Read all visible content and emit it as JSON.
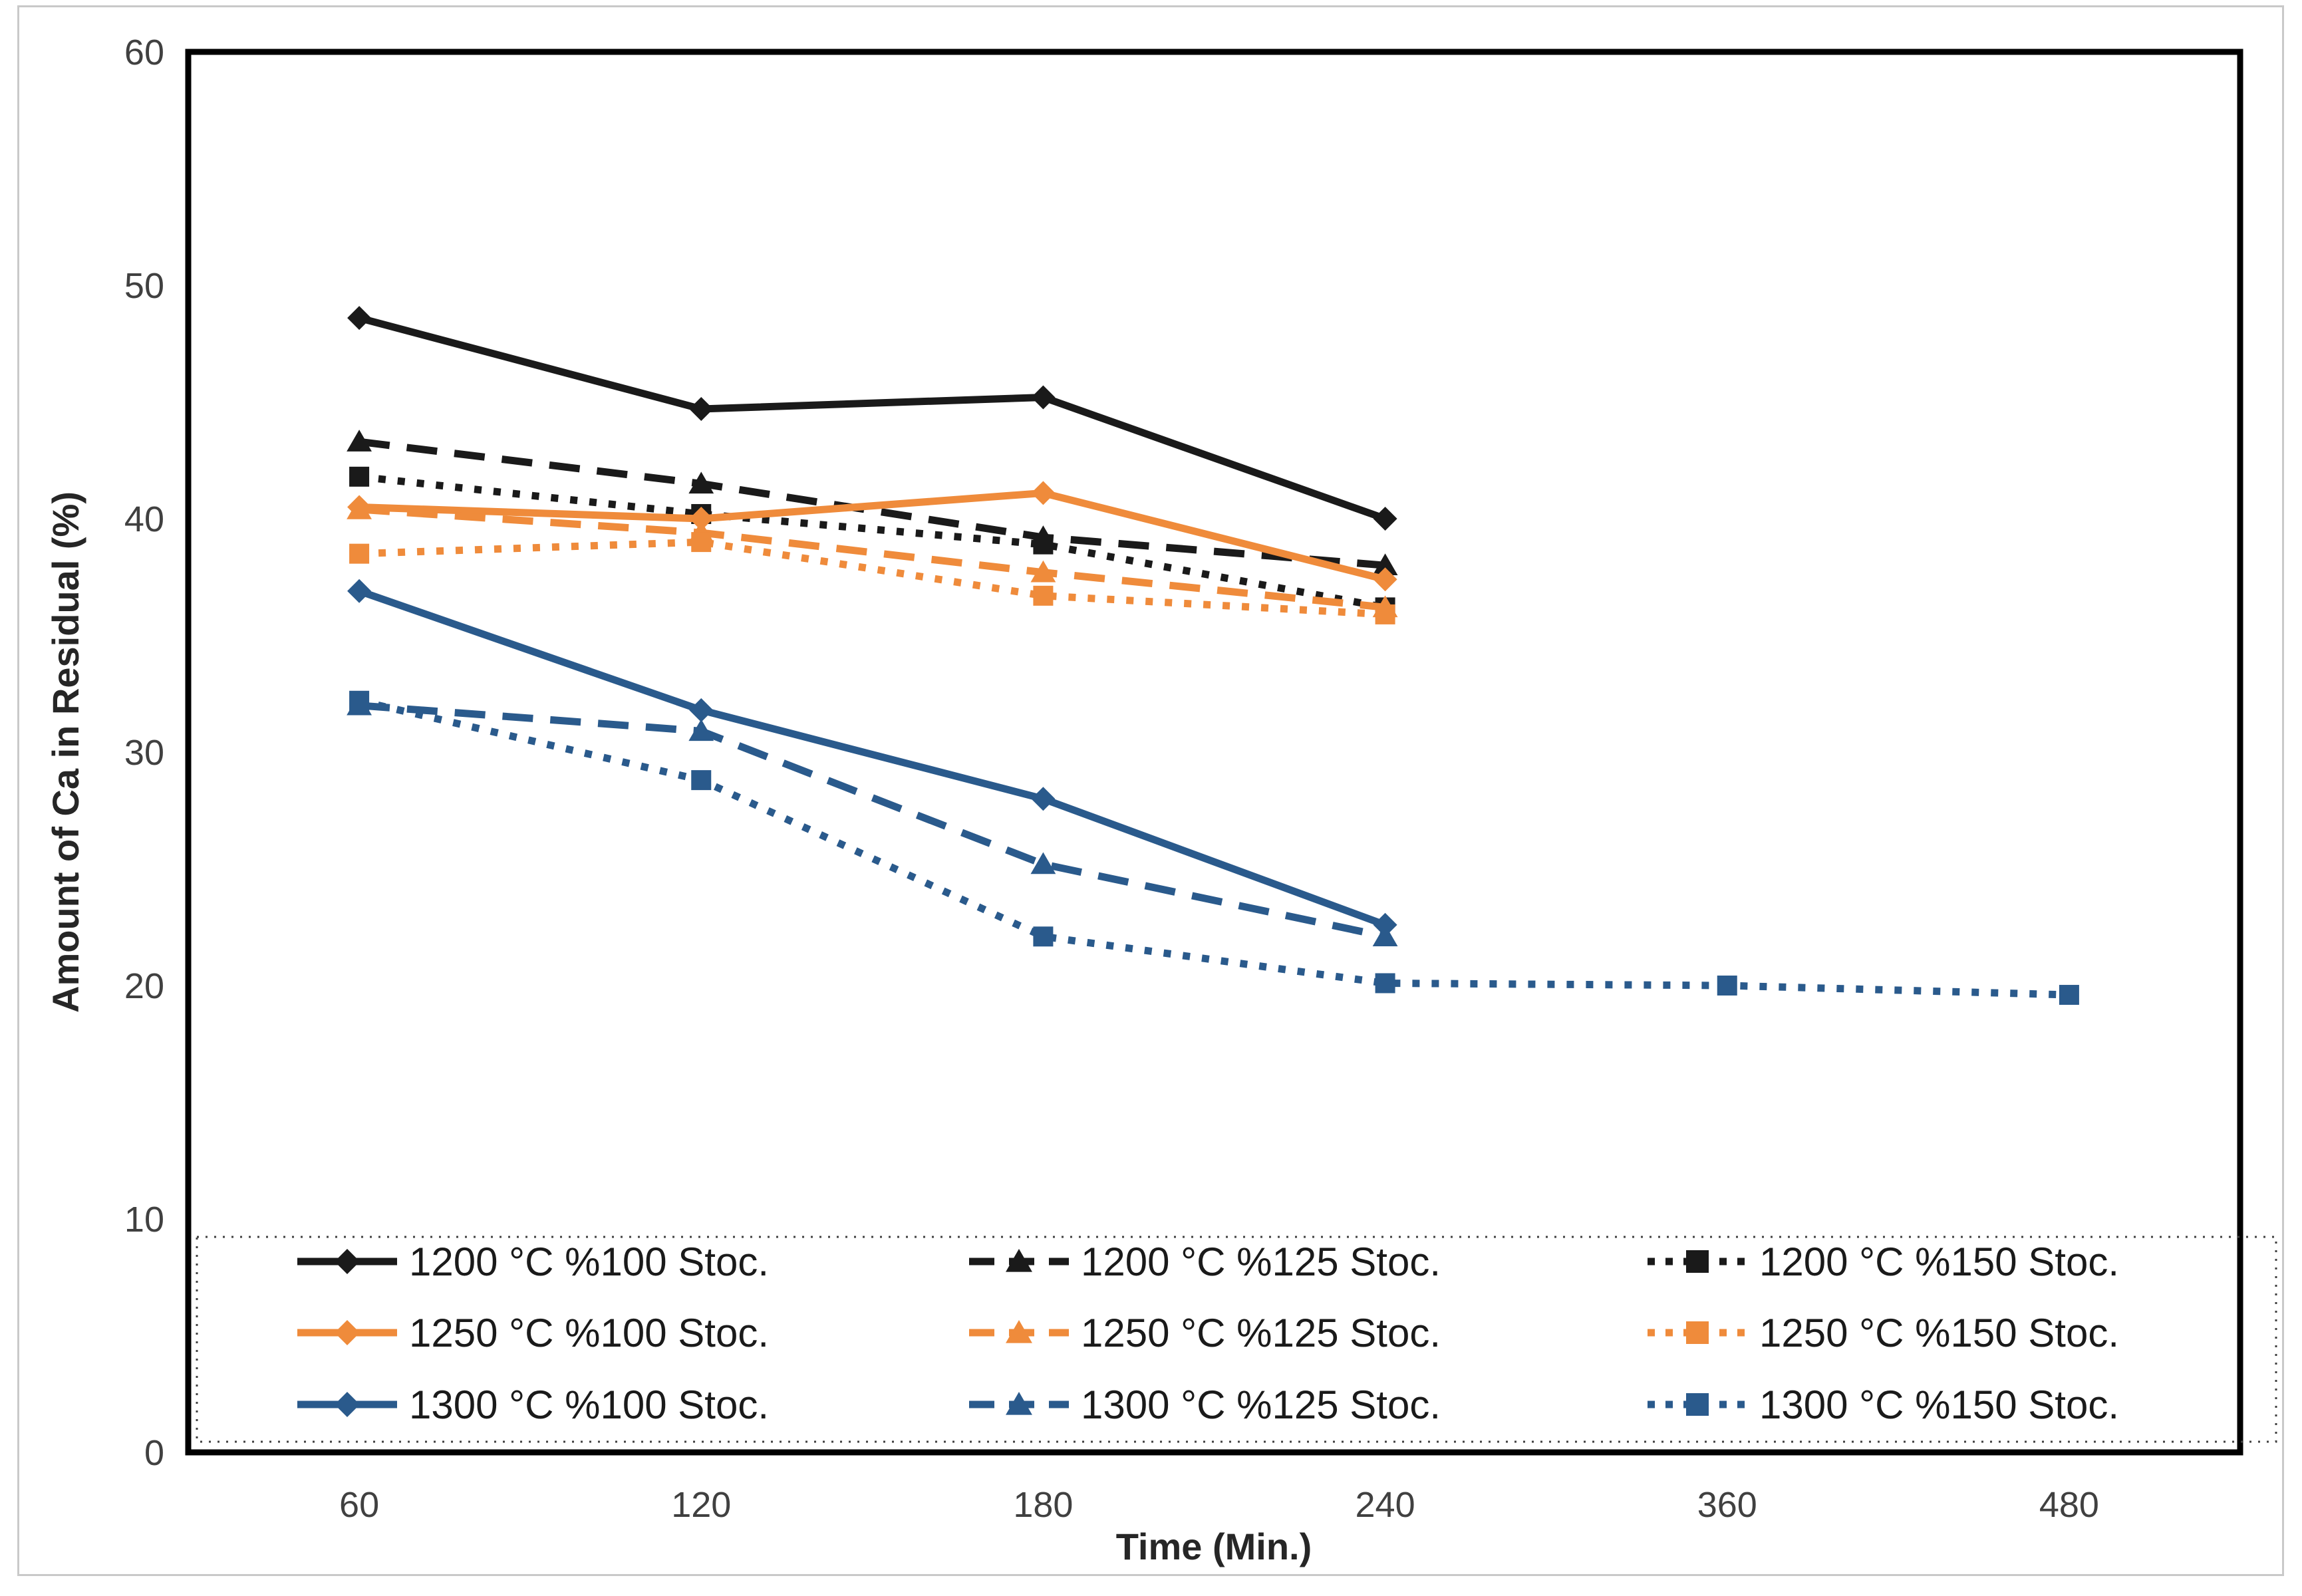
{
  "figure": {
    "title": "",
    "y_axis_title": "Amount of Ca in Residual (%)",
    "x_axis_title": "Time (Min.)"
  },
  "chart_data": {
    "type": "line",
    "title": "",
    "xlabel": "Time (Min.)",
    "ylabel": "Amount of Ca in Residual (%)",
    "x_categories": [
      "60",
      "120",
      "180",
      "240",
      "360",
      "480"
    ],
    "y_ticks": [
      "0",
      "10",
      "20",
      "30",
      "40",
      "50",
      "60"
    ],
    "ylim": [
      0,
      60
    ],
    "grid": false,
    "legend_position": "bottom-inside-dotted-box",
    "axis_color": "#000000",
    "tick_label_color": "#404040",
    "series": [
      {
        "name": "1200 °C %100 Stoc.",
        "color": "#1a1a1a",
        "line": "solid",
        "marker": "diamond",
        "values": [
          48.6,
          44.7,
          45.2,
          40.0,
          null,
          null
        ]
      },
      {
        "name": "1200 °C %125 Stoc.",
        "color": "#1a1a1a",
        "line": "dashed",
        "marker": "triangle",
        "values": [
          43.3,
          41.5,
          39.2,
          38.0,
          null,
          null
        ]
      },
      {
        "name": "1200 °C %150 Stoc.",
        "color": "#1a1a1a",
        "line": "dotted",
        "marker": "square",
        "values": [
          41.8,
          40.2,
          38.9,
          36.2,
          null,
          null
        ]
      },
      {
        "name": "1250 °C %100 Stoc.",
        "color": "#ef8b3b",
        "line": "solid",
        "marker": "diamond",
        "values": [
          40.5,
          40.0,
          41.1,
          37.4,
          null,
          null
        ]
      },
      {
        "name": "1250 °C %125 Stoc.",
        "color": "#ef8b3b",
        "line": "dashed",
        "marker": "triangle",
        "values": [
          40.4,
          39.4,
          37.7,
          36.2,
          null,
          null
        ]
      },
      {
        "name": "1250 °C %150 Stoc.",
        "color": "#ef8b3b",
        "line": "dotted",
        "marker": "square",
        "values": [
          38.5,
          39.0,
          36.7,
          35.9,
          null,
          null
        ]
      },
      {
        "name": "1300 °C %100 Stoc.",
        "color": "#2a5a8c",
        "line": "solid",
        "marker": "diamond",
        "values": [
          36.9,
          31.8,
          28.0,
          22.6,
          null,
          null
        ]
      },
      {
        "name": "1300 °C %125 Stoc.",
        "color": "#2a5a8c",
        "line": "dashed",
        "marker": "triangle",
        "values": [
          32.0,
          30.9,
          25.2,
          22.1,
          null,
          null
        ]
      },
      {
        "name": "1300 °C %150 Stoc.",
        "color": "#2a5a8c",
        "line": "dotted",
        "marker": "square",
        "values": [
          32.2,
          28.8,
          22.1,
          20.1,
          20.0,
          19.6
        ]
      }
    ]
  }
}
